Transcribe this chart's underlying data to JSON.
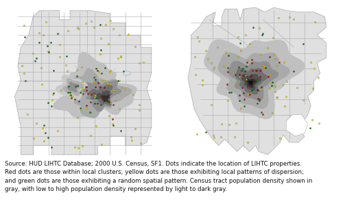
{
  "caption_line1": "Source: HUD LIHTC Database; 2000 U.S. Census, SF1. Dots indicate the location of LIHTC properties.",
  "caption_line2": "Red dots are those within local clusters; yellow dots are those exhibiting local patterns of dispersion;",
  "caption_line3": "and green dots are those exhibiting a random spatial pattern. Census tract population density shown in",
  "caption_line4": "gray, with low to high population density represented by light to dark gray.",
  "caption_fontsize": 6.2,
  "fig_bg": "#ffffff",
  "county_fill": "#e0e0e0",
  "county_edge": "#aaaaaa",
  "county_edge_width": 0.5,
  "dot_colors": {
    "red": "#cc0000",
    "yellow": "#ffee00",
    "green": "#007700"
  },
  "dot_size": 2.5,
  "dot_edge_width": 0.2,
  "dot_edge_color": "#222222",
  "density_colors": [
    "#cccccc",
    "#aaaaaa",
    "#888888",
    "#666666",
    "#444444",
    "#222222"
  ]
}
